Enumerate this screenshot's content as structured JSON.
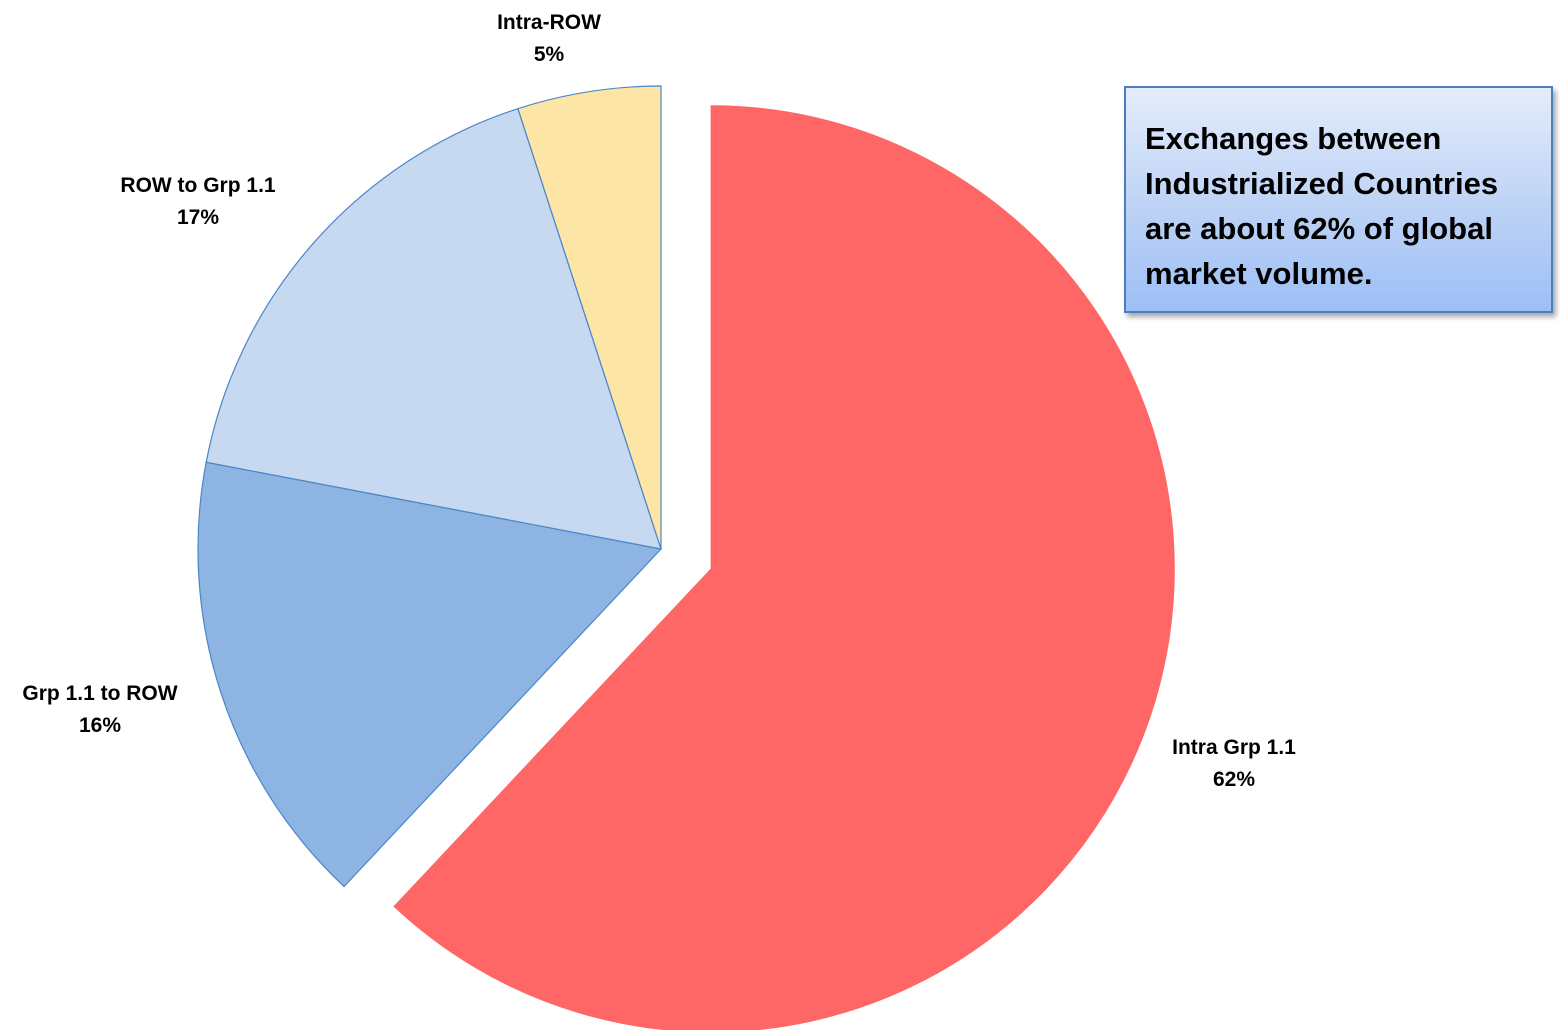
{
  "chart_data": {
    "type": "pie",
    "slices": [
      {
        "label": "Intra Grp 1.1",
        "value": 62,
        "value_label": "62%",
        "color": "#ff6666",
        "exploded": true
      },
      {
        "label": "Grp 1.1 to ROW",
        "value": 16,
        "value_label": "16%",
        "color": "#8eb4e3"
      },
      {
        "label": "ROW to Grp 1.1",
        "value": 17,
        "value_label": "17%",
        "color": "#c6d9f1"
      },
      {
        "label": "Intra-ROW",
        "value": 5,
        "value_label": "5%",
        "color": "#fde5a5"
      }
    ],
    "start": "12 o'clock",
    "direction": "clockwise",
    "border_color": "#4a86c8",
    "legend": "none"
  },
  "callout": {
    "text": "Exchanges between Industrialized Countries are about 62% of global market volume."
  }
}
